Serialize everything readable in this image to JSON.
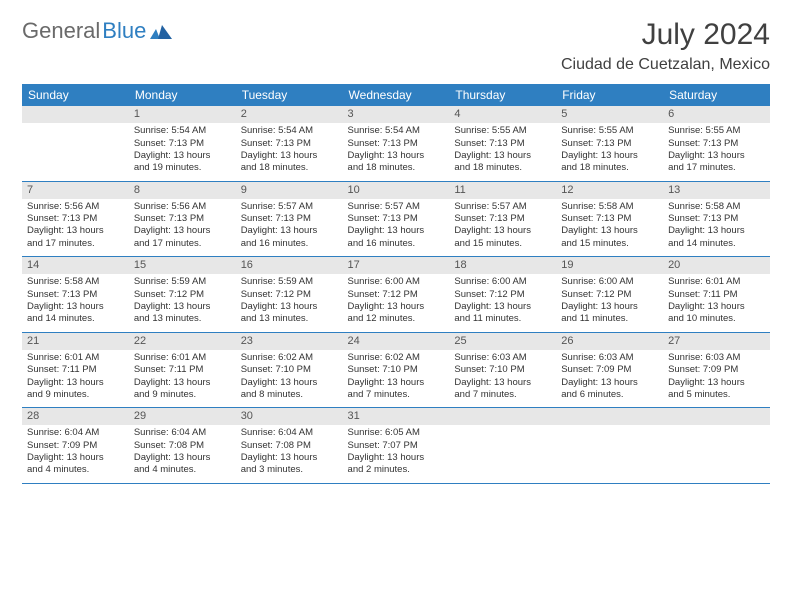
{
  "brand": {
    "word1": "General",
    "word2": "Blue"
  },
  "title": "July 2024",
  "subtitle": "Ciudad de Cuetzalan, Mexico",
  "colors": {
    "header_bg": "#2f7fc1",
    "daynum_bg": "#e7e7e7",
    "rule": "#2f7fc1"
  },
  "weekday_labels": [
    "Sunday",
    "Monday",
    "Tuesday",
    "Wednesday",
    "Thursday",
    "Friday",
    "Saturday"
  ],
  "weeks": [
    [
      {
        "n": "",
        "sr": "",
        "ss": "",
        "d1": "",
        "d2": ""
      },
      {
        "n": "1",
        "sr": "Sunrise: 5:54 AM",
        "ss": "Sunset: 7:13 PM",
        "d1": "Daylight: 13 hours",
        "d2": "and 19 minutes."
      },
      {
        "n": "2",
        "sr": "Sunrise: 5:54 AM",
        "ss": "Sunset: 7:13 PM",
        "d1": "Daylight: 13 hours",
        "d2": "and 18 minutes."
      },
      {
        "n": "3",
        "sr": "Sunrise: 5:54 AM",
        "ss": "Sunset: 7:13 PM",
        "d1": "Daylight: 13 hours",
        "d2": "and 18 minutes."
      },
      {
        "n": "4",
        "sr": "Sunrise: 5:55 AM",
        "ss": "Sunset: 7:13 PM",
        "d1": "Daylight: 13 hours",
        "d2": "and 18 minutes."
      },
      {
        "n": "5",
        "sr": "Sunrise: 5:55 AM",
        "ss": "Sunset: 7:13 PM",
        "d1": "Daylight: 13 hours",
        "d2": "and 18 minutes."
      },
      {
        "n": "6",
        "sr": "Sunrise: 5:55 AM",
        "ss": "Sunset: 7:13 PM",
        "d1": "Daylight: 13 hours",
        "d2": "and 17 minutes."
      }
    ],
    [
      {
        "n": "7",
        "sr": "Sunrise: 5:56 AM",
        "ss": "Sunset: 7:13 PM",
        "d1": "Daylight: 13 hours",
        "d2": "and 17 minutes."
      },
      {
        "n": "8",
        "sr": "Sunrise: 5:56 AM",
        "ss": "Sunset: 7:13 PM",
        "d1": "Daylight: 13 hours",
        "d2": "and 17 minutes."
      },
      {
        "n": "9",
        "sr": "Sunrise: 5:57 AM",
        "ss": "Sunset: 7:13 PM",
        "d1": "Daylight: 13 hours",
        "d2": "and 16 minutes."
      },
      {
        "n": "10",
        "sr": "Sunrise: 5:57 AM",
        "ss": "Sunset: 7:13 PM",
        "d1": "Daylight: 13 hours",
        "d2": "and 16 minutes."
      },
      {
        "n": "11",
        "sr": "Sunrise: 5:57 AM",
        "ss": "Sunset: 7:13 PM",
        "d1": "Daylight: 13 hours",
        "d2": "and 15 minutes."
      },
      {
        "n": "12",
        "sr": "Sunrise: 5:58 AM",
        "ss": "Sunset: 7:13 PM",
        "d1": "Daylight: 13 hours",
        "d2": "and 15 minutes."
      },
      {
        "n": "13",
        "sr": "Sunrise: 5:58 AM",
        "ss": "Sunset: 7:13 PM",
        "d1": "Daylight: 13 hours",
        "d2": "and 14 minutes."
      }
    ],
    [
      {
        "n": "14",
        "sr": "Sunrise: 5:58 AM",
        "ss": "Sunset: 7:13 PM",
        "d1": "Daylight: 13 hours",
        "d2": "and 14 minutes."
      },
      {
        "n": "15",
        "sr": "Sunrise: 5:59 AM",
        "ss": "Sunset: 7:12 PM",
        "d1": "Daylight: 13 hours",
        "d2": "and 13 minutes."
      },
      {
        "n": "16",
        "sr": "Sunrise: 5:59 AM",
        "ss": "Sunset: 7:12 PM",
        "d1": "Daylight: 13 hours",
        "d2": "and 13 minutes."
      },
      {
        "n": "17",
        "sr": "Sunrise: 6:00 AM",
        "ss": "Sunset: 7:12 PM",
        "d1": "Daylight: 13 hours",
        "d2": "and 12 minutes."
      },
      {
        "n": "18",
        "sr": "Sunrise: 6:00 AM",
        "ss": "Sunset: 7:12 PM",
        "d1": "Daylight: 13 hours",
        "d2": "and 11 minutes."
      },
      {
        "n": "19",
        "sr": "Sunrise: 6:00 AM",
        "ss": "Sunset: 7:12 PM",
        "d1": "Daylight: 13 hours",
        "d2": "and 11 minutes."
      },
      {
        "n": "20",
        "sr": "Sunrise: 6:01 AM",
        "ss": "Sunset: 7:11 PM",
        "d1": "Daylight: 13 hours",
        "d2": "and 10 minutes."
      }
    ],
    [
      {
        "n": "21",
        "sr": "Sunrise: 6:01 AM",
        "ss": "Sunset: 7:11 PM",
        "d1": "Daylight: 13 hours",
        "d2": "and 9 minutes."
      },
      {
        "n": "22",
        "sr": "Sunrise: 6:01 AM",
        "ss": "Sunset: 7:11 PM",
        "d1": "Daylight: 13 hours",
        "d2": "and 9 minutes."
      },
      {
        "n": "23",
        "sr": "Sunrise: 6:02 AM",
        "ss": "Sunset: 7:10 PM",
        "d1": "Daylight: 13 hours",
        "d2": "and 8 minutes."
      },
      {
        "n": "24",
        "sr": "Sunrise: 6:02 AM",
        "ss": "Sunset: 7:10 PM",
        "d1": "Daylight: 13 hours",
        "d2": "and 7 minutes."
      },
      {
        "n": "25",
        "sr": "Sunrise: 6:03 AM",
        "ss": "Sunset: 7:10 PM",
        "d1": "Daylight: 13 hours",
        "d2": "and 7 minutes."
      },
      {
        "n": "26",
        "sr": "Sunrise: 6:03 AM",
        "ss": "Sunset: 7:09 PM",
        "d1": "Daylight: 13 hours",
        "d2": "and 6 minutes."
      },
      {
        "n": "27",
        "sr": "Sunrise: 6:03 AM",
        "ss": "Sunset: 7:09 PM",
        "d1": "Daylight: 13 hours",
        "d2": "and 5 minutes."
      }
    ],
    [
      {
        "n": "28",
        "sr": "Sunrise: 6:04 AM",
        "ss": "Sunset: 7:09 PM",
        "d1": "Daylight: 13 hours",
        "d2": "and 4 minutes."
      },
      {
        "n": "29",
        "sr": "Sunrise: 6:04 AM",
        "ss": "Sunset: 7:08 PM",
        "d1": "Daylight: 13 hours",
        "d2": "and 4 minutes."
      },
      {
        "n": "30",
        "sr": "Sunrise: 6:04 AM",
        "ss": "Sunset: 7:08 PM",
        "d1": "Daylight: 13 hours",
        "d2": "and 3 minutes."
      },
      {
        "n": "31",
        "sr": "Sunrise: 6:05 AM",
        "ss": "Sunset: 7:07 PM",
        "d1": "Daylight: 13 hours",
        "d2": "and 2 minutes."
      },
      {
        "n": "",
        "sr": "",
        "ss": "",
        "d1": "",
        "d2": ""
      },
      {
        "n": "",
        "sr": "",
        "ss": "",
        "d1": "",
        "d2": ""
      },
      {
        "n": "",
        "sr": "",
        "ss": "",
        "d1": "",
        "d2": ""
      }
    ]
  ]
}
